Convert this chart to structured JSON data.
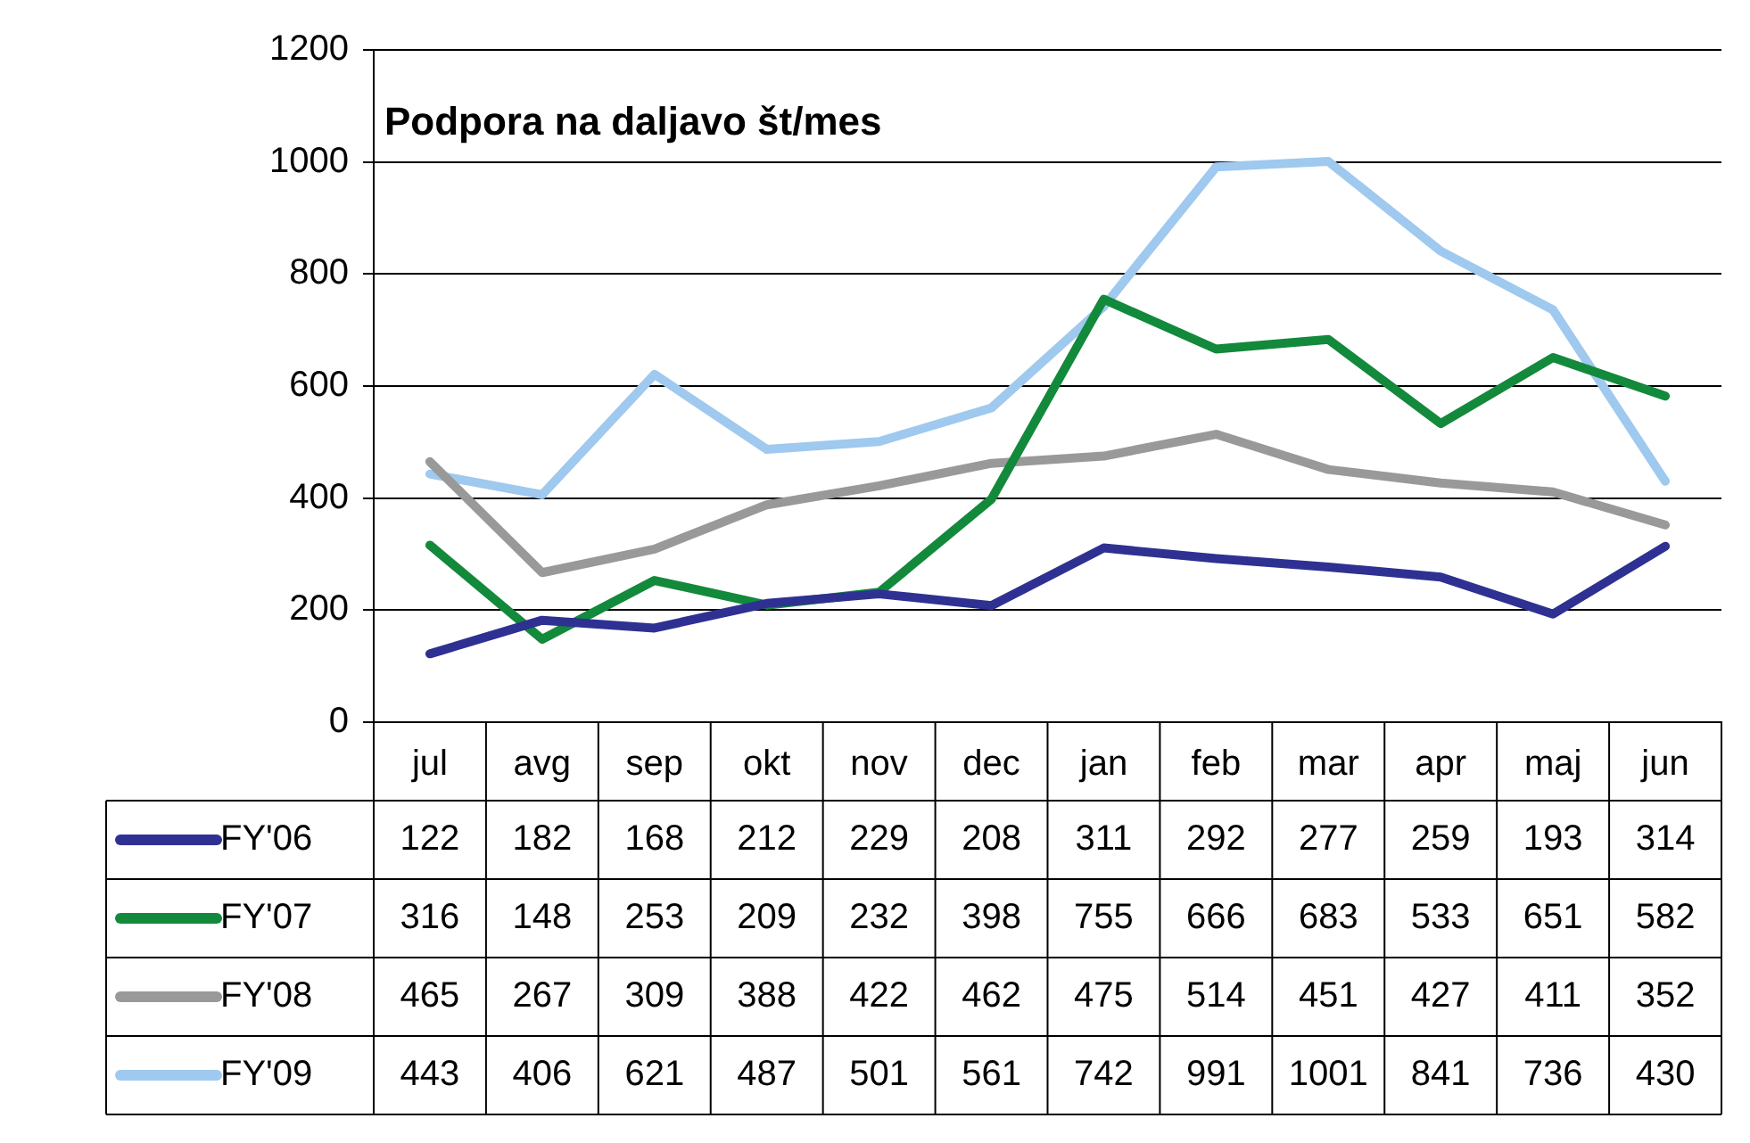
{
  "chart_data": {
    "type": "line",
    "title": "Podpora na daljavo št/mes",
    "categories": [
      "jul",
      "avg",
      "sep",
      "okt",
      "nov",
      "dec",
      "jan",
      "feb",
      "mar",
      "apr",
      "maj",
      "jun"
    ],
    "series": [
      {
        "name": "FY'06",
        "color": "#2e3192",
        "values": [
          122,
          182,
          168,
          212,
          229,
          208,
          311,
          292,
          277,
          259,
          193,
          314
        ]
      },
      {
        "name": "FY'07",
        "color": "#13893b",
        "values": [
          316,
          148,
          253,
          209,
          232,
          398,
          755,
          666,
          683,
          533,
          651,
          582
        ]
      },
      {
        "name": "FY'08",
        "color": "#999999",
        "values": [
          465,
          267,
          309,
          388,
          422,
          462,
          475,
          514,
          451,
          427,
          411,
          352
        ]
      },
      {
        "name": "FY'09",
        "color": "#9fc9ee",
        "values": [
          443,
          406,
          621,
          487,
          501,
          561,
          742,
          991,
          1001,
          841,
          736,
          430
        ]
      }
    ],
    "ylim": [
      0,
      1200
    ],
    "yticks": [
      0,
      200,
      400,
      600,
      800,
      1000,
      1200
    ],
    "grid": "y",
    "legend": "bottom",
    "marker": "none",
    "line_style": "solid",
    "data_labels": true
  }
}
